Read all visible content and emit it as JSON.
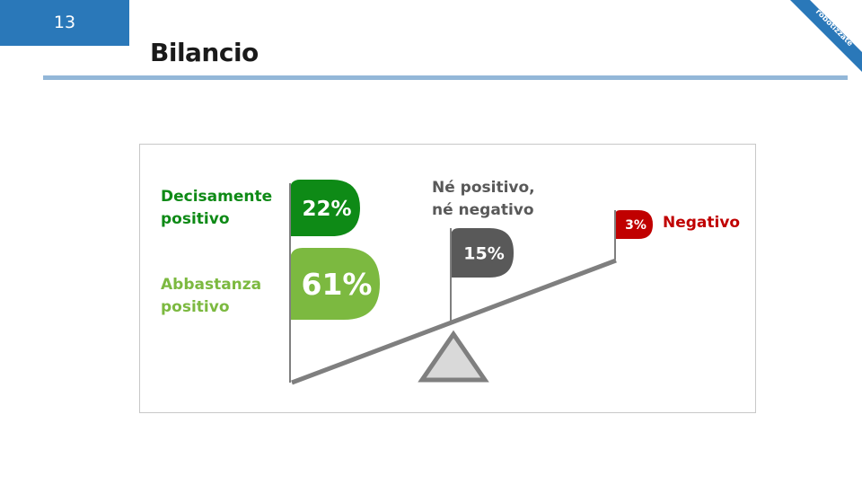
{
  "page": {
    "number": "13",
    "title": "Bilancio",
    "corner_label": "Aziende\nrobotizzate"
  },
  "colors": {
    "accent_blue": "#2a78b9",
    "rule": "#93b7d8",
    "decisamente": "#0e8a16",
    "abbastanza": "#7cb940",
    "neutro": "#595959",
    "negativo": "#c00000",
    "beam": "#7f7f7f",
    "fulcrum_fill": "#d9d9d9"
  },
  "chart_data": {
    "type": "other",
    "categories": [
      {
        "label": "Decisamente\npositivo",
        "value": 22,
        "display": "22%",
        "color": "#0e8a16"
      },
      {
        "label": "Abbastanza\npositivo",
        "value": 61,
        "display": "61%",
        "color": "#7cb940"
      },
      {
        "label": "Né positivo,\nné negativo",
        "value": 15,
        "display": "15%",
        "color": "#595959"
      },
      {
        "label": "Negativo",
        "value": 3,
        "display": "3%",
        "color": "#c00000"
      }
    ]
  }
}
